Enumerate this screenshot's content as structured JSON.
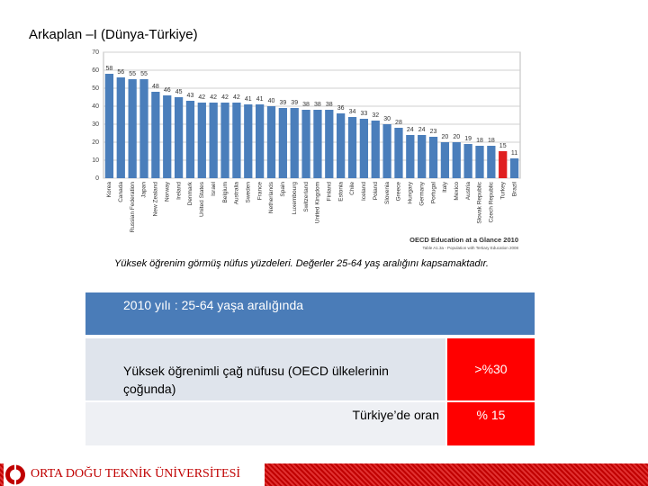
{
  "header": {
    "title": "Arkaplan –I (Dünya-Türkiye)"
  },
  "chart_data": {
    "type": "bar",
    "categories": [
      "Korea",
      "Canada",
      "Russian Federation",
      "Japan",
      "New Zealand",
      "Norway",
      "Ireland",
      "Denmark",
      "United States",
      "Israel",
      "Belgium",
      "Australia",
      "Sweden",
      "France",
      "Netherlands",
      "Spain",
      "Luxembourg",
      "Switzerland",
      "United Kingdom",
      "Finland",
      "Estonia",
      "Chile",
      "Iceland",
      "Poland",
      "Slovenia",
      "Greece",
      "Hungary",
      "Germany",
      "Portugal",
      "Italy",
      "Mexico",
      "Austria",
      "Slovak Republic",
      "Czech Republic",
      "Turkey",
      "Brazil"
    ],
    "values": [
      58,
      56,
      55,
      55,
      48,
      46,
      45,
      43,
      42,
      42,
      42,
      42,
      41,
      41,
      40,
      39,
      39,
      38,
      38,
      38,
      36,
      34,
      33,
      32,
      30,
      28,
      24,
      24,
      23,
      20,
      20,
      19,
      18,
      18,
      15,
      11
    ],
    "colors": [
      "#4a7ebb",
      "#4a7ebb",
      "#4a7ebb",
      "#4a7ebb",
      "#4a7ebb",
      "#4a7ebb",
      "#4a7ebb",
      "#4a7ebb",
      "#4a7ebb",
      "#4a7ebb",
      "#4a7ebb",
      "#4a7ebb",
      "#4a7ebb",
      "#4a7ebb",
      "#4a7ebb",
      "#4a7ebb",
      "#4a7ebb",
      "#4a7ebb",
      "#4a7ebb",
      "#4a7ebb",
      "#4a7ebb",
      "#4a7ebb",
      "#4a7ebb",
      "#4a7ebb",
      "#4a7ebb",
      "#4a7ebb",
      "#4a7ebb",
      "#4a7ebb",
      "#4a7ebb",
      "#4a7ebb",
      "#4a7ebb",
      "#4a7ebb",
      "#4a7ebb",
      "#4a7ebb",
      "#e02020",
      "#4a7ebb"
    ],
    "ylim": [
      0,
      70
    ],
    "yticks": [
      0,
      10,
      20,
      30,
      40,
      50,
      60,
      70
    ],
    "grid": true,
    "source": "OECD Education at a Glance 2010",
    "source_note": "Table A1.3a - Population with Tertiary Education 2008"
  },
  "caption": "Yüksek öğrenim görmüş nüfus yüzdeleri. Değerler 25-64 yaş aralığını kapsamaktadır.",
  "table": {
    "header": "2010 yılı : 25-64 yaşa aralığında",
    "rows": [
      [
        "Yüksek öğrenimli çağ nüfusu (OECD ülkelerinin çoğunda)",
        ">%30"
      ],
      [
        "Türkiye’de oran",
        "% 15"
      ]
    ]
  },
  "footer": {
    "text": "ORTA DOĞU TEKNİK ÜNİVERSİTESİ"
  }
}
